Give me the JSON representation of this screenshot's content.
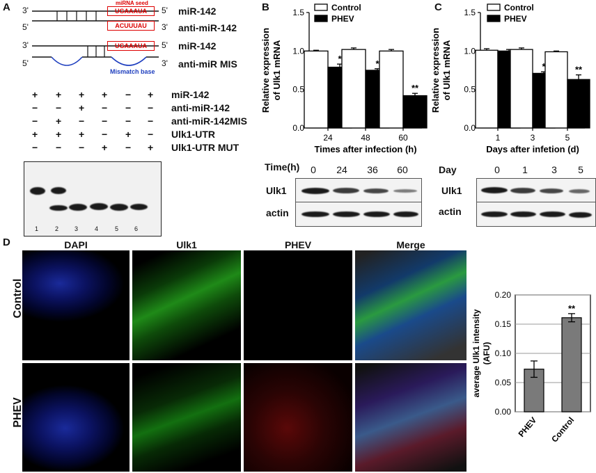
{
  "panels": {
    "a": "A",
    "b": "B",
    "c": "C",
    "d": "D"
  },
  "panel_a": {
    "strand_ends": {
      "three": "3'",
      "five": "5'"
    },
    "seed_caption": "miRNA seed",
    "seed_seq": "UGAAAUA",
    "anti_seq": "ACUUUAU",
    "mismatch_caption": "Mismatch base",
    "label_mir142": "miR-142",
    "label_anti": "anti-miR-142",
    "label_mis": "anti-miR MIS",
    "table_rows": [
      {
        "label": "miR-142",
        "marks": [
          "+",
          "+",
          "+",
          "+",
          "−",
          "+"
        ]
      },
      {
        "label": "anti-miR-142",
        "marks": [
          "−",
          "−",
          "+",
          "−",
          "−",
          "−"
        ]
      },
      {
        "label": "anti-miR-142MIS",
        "marks": [
          "−",
          "+",
          "−",
          "−",
          "−",
          "−"
        ]
      },
      {
        "label": "Ulk1-UTR",
        "marks": [
          "+",
          "+",
          "+",
          "−",
          "+",
          "−"
        ]
      },
      {
        "label": "Ulk1-UTR MUT",
        "marks": [
          "−",
          "−",
          "−",
          "+",
          "−",
          "+"
        ]
      }
    ],
    "lanes": [
      "1",
      "2",
      "3",
      "4",
      "5",
      "6"
    ]
  },
  "panel_b": {
    "western_header": "Time(h)",
    "western_times": [
      "0",
      "24",
      "36",
      "60"
    ],
    "rows": [
      "Ulk1",
      "actin"
    ]
  },
  "panel_c": {
    "western_header": "Day",
    "western_days": [
      "0",
      "1",
      "3",
      "5"
    ],
    "rows": [
      "Ulk1",
      "actin"
    ]
  },
  "panel_d": {
    "columns": [
      "DAPI",
      "Ulk1",
      "PHEV",
      "Merge"
    ],
    "rows": [
      "Control",
      "PHEV"
    ]
  },
  "colors": {
    "bar_control": "#ffffff",
    "bar_phev": "#000000",
    "bar_grey": "#7a7a7a",
    "seed_red": "#dd0000",
    "mismatch_blue": "#1f3fbf"
  },
  "chart_data": [
    {
      "type": "bar",
      "categories": [
        "24",
        "48",
        "60"
      ],
      "series": [
        {
          "name": "Control",
          "values": [
            1.0,
            1.02,
            1.0
          ]
        },
        {
          "name": "PHEV",
          "values": [
            0.79,
            0.75,
            0.42
          ]
        }
      ],
      "errors": {
        "Control": [
          0.01,
          0.02,
          0.02
        ],
        "PHEV": [
          0.04,
          0.02,
          0.03
        ]
      },
      "significance": [
        "*",
        "*",
        "**"
      ],
      "xlabel": "Times after infection (h)",
      "ylabel_line1": "Relative expression",
      "ylabel_line2": "of Ulk1 mRNA",
      "ylim": [
        0.0,
        1.5
      ],
      "yticks": [
        "0.0",
        "0.5",
        "1.0",
        "1.5"
      ],
      "legend": "top-right"
    },
    {
      "type": "bar",
      "categories": [
        "1",
        "3",
        "5"
      ],
      "series": [
        {
          "name": "Control",
          "values": [
            1.01,
            1.02,
            0.99
          ]
        },
        {
          "name": "PHEV",
          "values": [
            1.0,
            0.71,
            0.63
          ]
        }
      ],
      "errors": {
        "Control": [
          0.02,
          0.02,
          0.01
        ],
        "PHEV": [
          0.02,
          0.02,
          0.06
        ]
      },
      "significance": [
        "",
        "*",
        "**"
      ],
      "xlabel": "Days after infetion (d)",
      "ylabel_line1": "Relative expression",
      "ylabel_line2": "of Ulk1 mRNA",
      "ylim": [
        0.0,
        1.5
      ],
      "yticks": [
        "0.0",
        "0.5",
        "1.0",
        "1.5"
      ],
      "legend": "top-right"
    },
    {
      "type": "bar",
      "categories": [
        "PHEV",
        "Control"
      ],
      "values": [
        0.073,
        0.161
      ],
      "errors": [
        0.014,
        0.007
      ],
      "significance": [
        "",
        "**"
      ],
      "ylabel_line1": "average Ulk1 intensity",
      "ylabel_line2": "(AFU)",
      "ylim": [
        0.0,
        0.2
      ],
      "yticks": [
        "0.00",
        "0.05",
        "0.10",
        "0.15",
        "0.20"
      ],
      "grid": true
    }
  ]
}
